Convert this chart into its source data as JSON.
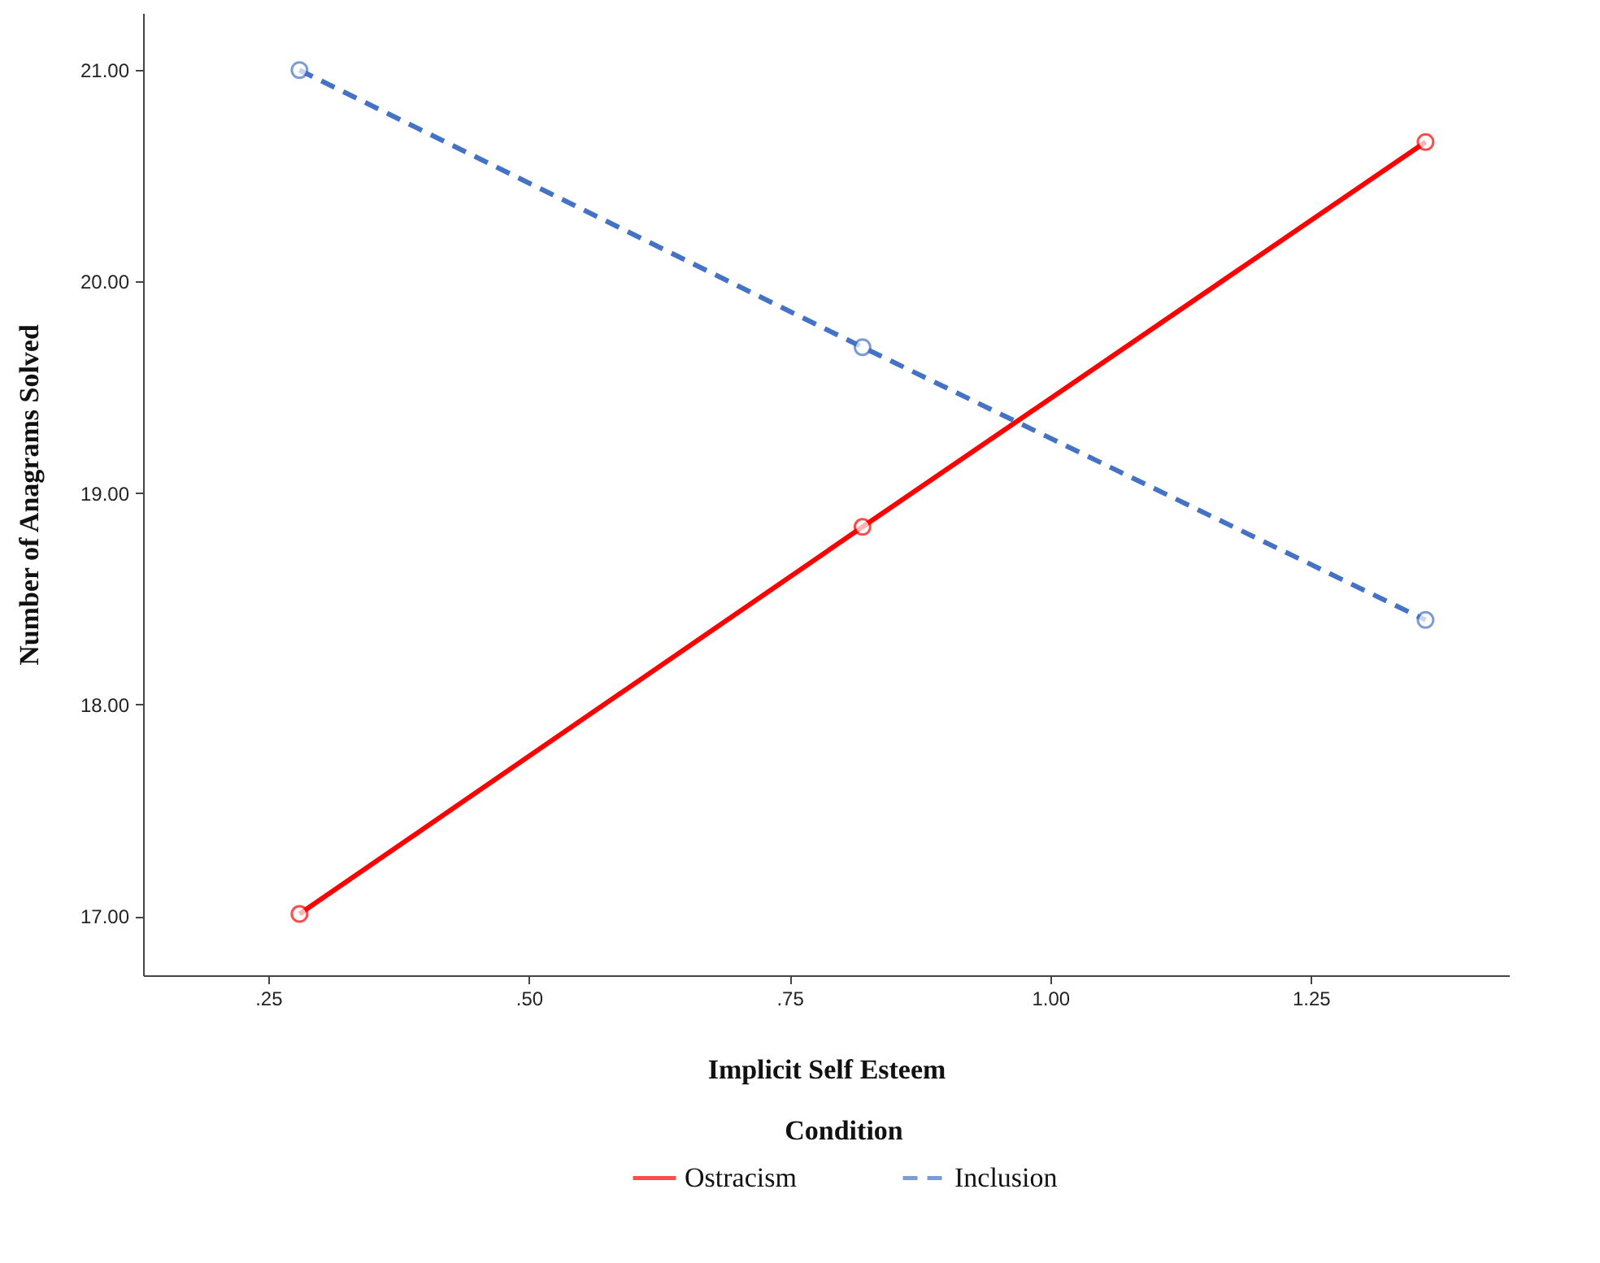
{
  "chart_data": {
    "type": "line",
    "xlabel": "Implicit Self Esteem",
    "ylabel": "Number of Anagrams Solved",
    "legend_title": "Condition",
    "legend": "bottom",
    "grid": false,
    "marker": "circle",
    "xlim": [
      0.13,
      1.44
    ],
    "xticks": [
      {
        "value": 0.25,
        "label": ".25"
      },
      {
        "value": 0.5,
        "label": ".50"
      },
      {
        "value": 0.75,
        "label": ".75"
      },
      {
        "value": 1,
        "label": "1.00"
      },
      {
        "value": 1.25,
        "label": "1.25"
      }
    ],
    "ylim": [
      16.72,
      21.27
    ],
    "yticks": [
      {
        "value": 17,
        "label": "17.00"
      },
      {
        "value": 18,
        "label": "18.00"
      },
      {
        "value": 19,
        "label": "19.00"
      },
      {
        "value": 20,
        "label": "20.00"
      },
      {
        "value": 21,
        "label": "21.00"
      }
    ],
    "x": [
      0.28,
      0.82,
      1.36
    ],
    "series": [
      {
        "name": "Ostracism",
        "color": "#ff0000",
        "line_style": "solid",
        "values": [
          17.01,
          18.84,
          20.66
        ]
      },
      {
        "name": "Inclusion",
        "color": "#4472c4",
        "line_style": "dashed",
        "values": [
          21.0,
          19.69,
          18.4
        ]
      }
    ]
  }
}
